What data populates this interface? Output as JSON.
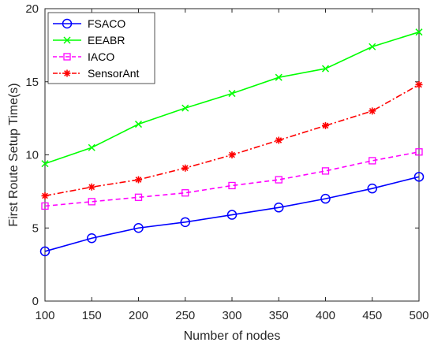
{
  "chart_data": {
    "type": "line",
    "xlabel": "Number of nodes",
    "ylabel": "First Route Setup Time(s)",
    "xlim": [
      100,
      500
    ],
    "ylim": [
      0,
      20
    ],
    "x": [
      100,
      150,
      200,
      250,
      300,
      350,
      400,
      450,
      500
    ],
    "xticks": [
      "100",
      "150",
      "200",
      "250",
      "300",
      "350",
      "400",
      "450",
      "500"
    ],
    "yticks": [
      "0",
      "5",
      "10",
      "15",
      "20"
    ],
    "grid": false,
    "legend_position": "top-left",
    "series": [
      {
        "name": "FSACO",
        "color": "#0000ff",
        "line_style": "solid",
        "marker": "circle",
        "values": [
          3.4,
          4.3,
          5.0,
          5.4,
          5.9,
          6.4,
          7.0,
          7.7,
          8.5
        ]
      },
      {
        "name": "EEABR",
        "color": "#00ff00",
        "line_style": "solid",
        "marker": "x",
        "values": [
          9.4,
          10.5,
          12.1,
          13.2,
          14.2,
          15.3,
          15.9,
          17.4,
          18.4
        ]
      },
      {
        "name": "IACO",
        "color": "#ff00ff",
        "line_style": "dashed",
        "marker": "square",
        "values": [
          6.5,
          6.8,
          7.1,
          7.4,
          7.9,
          8.3,
          8.9,
          9.6,
          10.2
        ]
      },
      {
        "name": "SensorAnt",
        "color": "#ff0000",
        "line_style": "dash-dot",
        "marker": "asterisk",
        "values": [
          7.2,
          7.8,
          8.3,
          9.1,
          10.0,
          11.0,
          12.0,
          13.0,
          14.8
        ]
      }
    ]
  }
}
